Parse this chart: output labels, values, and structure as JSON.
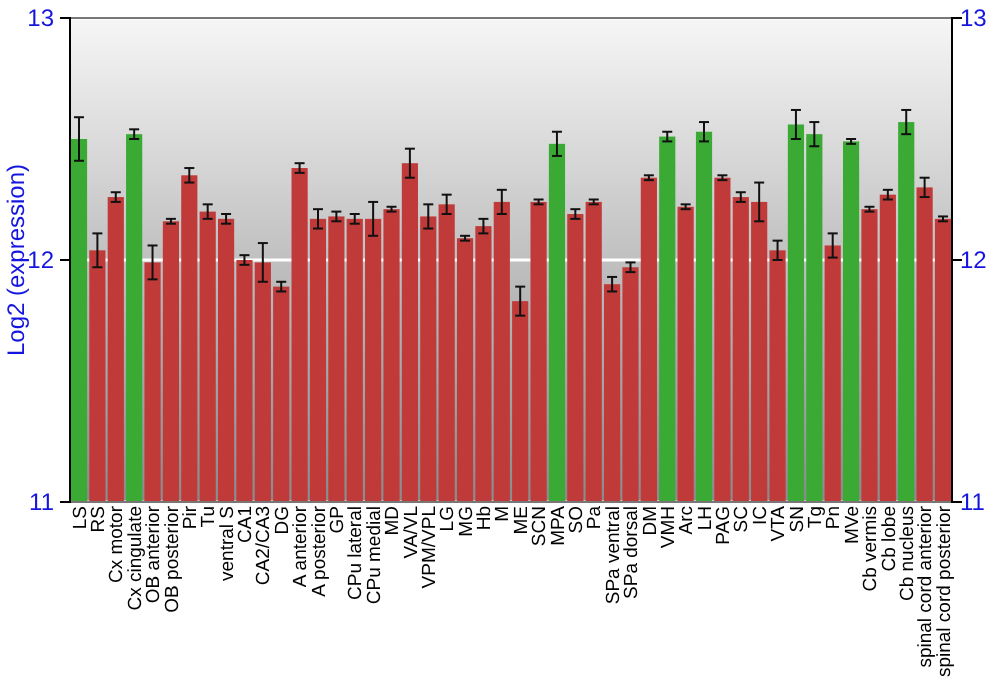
{
  "chart_data": {
    "type": "bar",
    "ylabel": "Log2 (expression)",
    "categories": [
      "LS",
      "RS",
      "Cx motor",
      "Cx cingulate",
      "OB anterior",
      "OB posterior",
      "Pir",
      "Tu",
      "ventral S",
      "CA1",
      "CA2/CA3",
      "DG",
      "A anterior",
      "A posterior",
      "GP",
      "CPu lateral",
      "CPu medial",
      "MD",
      "VA/VL",
      "VPM/VPL",
      "LG",
      "MG",
      "Hb",
      "M",
      "ME",
      "SCN",
      "MPA",
      "SO",
      "Pa",
      "SPa ventral",
      "SPa dorsal",
      "DM",
      "VMH",
      "Arc",
      "LH",
      "PAG",
      "SC",
      "IC",
      "VTA",
      "SN",
      "Tg",
      "Pn",
      "MVe",
      "Cb vermis",
      "Cb lobe",
      "Cb nucleus",
      "spinal cord anterior",
      "spinal cord posterior"
    ],
    "values": [
      12.5,
      12.04,
      12.26,
      12.52,
      11.99,
      12.16,
      12.35,
      12.2,
      12.17,
      12.0,
      11.99,
      11.89,
      12.38,
      12.17,
      12.18,
      12.17,
      12.17,
      12.21,
      12.4,
      12.18,
      12.23,
      12.09,
      12.14,
      12.24,
      11.83,
      12.24,
      12.48,
      12.19,
      12.24,
      11.9,
      11.97,
      12.34,
      12.51,
      12.22,
      12.53,
      12.34,
      12.26,
      12.24,
      12.04,
      12.56,
      12.52,
      12.06,
      12.49,
      12.21,
      12.27,
      12.57,
      12.3,
      12.17
    ],
    "errors": [
      0.09,
      0.07,
      0.02,
      0.02,
      0.07,
      0.01,
      0.03,
      0.03,
      0.02,
      0.02,
      0.08,
      0.02,
      0.02,
      0.04,
      0.02,
      0.02,
      0.07,
      0.01,
      0.06,
      0.05,
      0.04,
      0.01,
      0.03,
      0.05,
      0.06,
      0.01,
      0.05,
      0.02,
      0.01,
      0.03,
      0.02,
      0.01,
      0.02,
      0.01,
      0.04,
      0.01,
      0.02,
      0.08,
      0.04,
      0.06,
      0.05,
      0.05,
      0.01,
      0.01,
      0.02,
      0.05,
      0.04,
      0.01
    ],
    "colors": [
      "#3aaa35",
      "#c03a3a",
      "#c03a3a",
      "#3aaa35",
      "#c03a3a",
      "#c03a3a",
      "#c03a3a",
      "#c03a3a",
      "#c03a3a",
      "#c03a3a",
      "#c03a3a",
      "#c03a3a",
      "#c03a3a",
      "#c03a3a",
      "#c03a3a",
      "#c03a3a",
      "#c03a3a",
      "#c03a3a",
      "#c03a3a",
      "#c03a3a",
      "#c03a3a",
      "#c03a3a",
      "#c03a3a",
      "#c03a3a",
      "#c03a3a",
      "#c03a3a",
      "#3aaa35",
      "#c03a3a",
      "#c03a3a",
      "#c03a3a",
      "#c03a3a",
      "#c03a3a",
      "#3aaa35",
      "#c03a3a",
      "#3aaa35",
      "#c03a3a",
      "#c03a3a",
      "#c03a3a",
      "#c03a3a",
      "#3aaa35",
      "#3aaa35",
      "#c03a3a",
      "#3aaa35",
      "#c03a3a",
      "#c03a3a",
      "#3aaa35",
      "#c03a3a",
      "#c03a3a"
    ],
    "ylim": [
      11,
      13
    ],
    "yticks": [
      11,
      12,
      13
    ],
    "y2lim": [
      11,
      13
    ],
    "y2ticks": [
      11,
      12,
      13
    ],
    "grid": "y"
  }
}
